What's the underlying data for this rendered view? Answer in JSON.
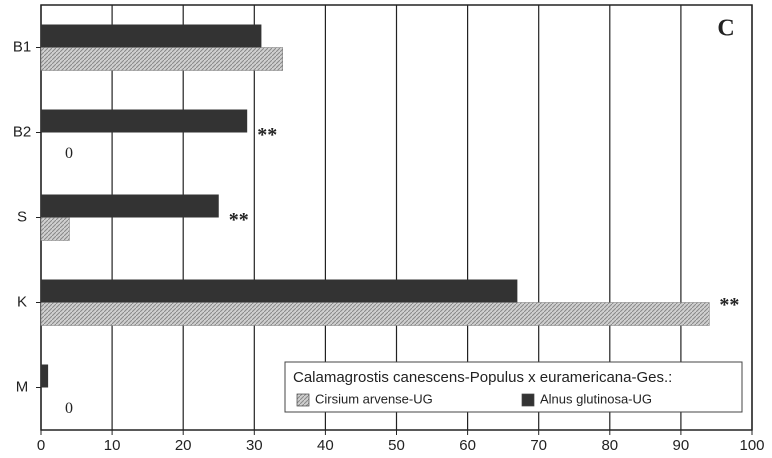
{
  "chart_data": {
    "type": "barh",
    "panel_label": "C",
    "categories": [
      "B1",
      "B2",
      "S",
      "K",
      "M"
    ],
    "series": [
      {
        "name": "Alnus glutinosa-UG",
        "color": "#333333",
        "values": [
          31,
          29,
          25,
          67,
          1
        ]
      },
      {
        "name": "Cirsium arvense-UG",
        "color": "#c8c8c8",
        "values": [
          34,
          0,
          4,
          94,
          0
        ]
      }
    ],
    "significance": [
      null,
      "**",
      "**",
      "**",
      null
    ],
    "legend_title": "Calamagrostis canescens-Populus x euramericana-Ges.:",
    "legend_order": [
      1,
      0
    ],
    "xlim": [
      0,
      100
    ],
    "xticks": [
      0,
      10,
      20,
      30,
      40,
      50,
      60,
      70,
      80,
      90,
      100
    ],
    "grid": true
  }
}
